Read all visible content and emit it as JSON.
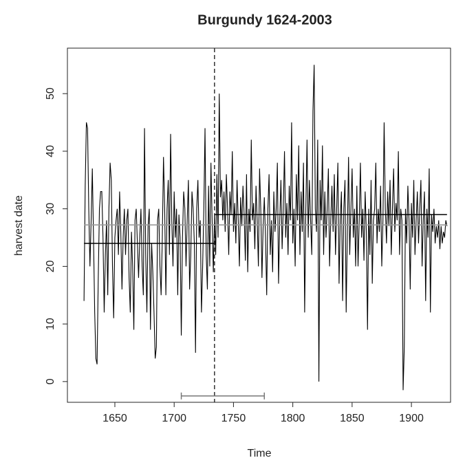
{
  "chart_data": {
    "type": "line",
    "title": "Burgundy  1624-2003",
    "xlabel": "Time",
    "ylabel": "harvest date",
    "xlim": [
      1610,
      1933
    ],
    "ylim": [
      -3.6,
      57.9
    ],
    "xticks": [
      1650,
      1700,
      1750,
      1800,
      1850,
      1900
    ],
    "yticks": [
      0,
      10,
      20,
      30,
      40,
      50
    ],
    "x": [
      1624,
      1625,
      1626,
      1627,
      1628,
      1629,
      1630,
      1631,
      1632,
      1633,
      1634,
      1635,
      1636,
      1637,
      1638,
      1639,
      1640,
      1641,
      1642,
      1643,
      1644,
      1645,
      1646,
      1647,
      1648,
      1649,
      1650,
      1651,
      1652,
      1653,
      1654,
      1655,
      1656,
      1657,
      1658,
      1659,
      1660,
      1661,
      1662,
      1663,
      1664,
      1665,
      1666,
      1667,
      1668,
      1669,
      1670,
      1671,
      1672,
      1673,
      1674,
      1675,
      1676,
      1677,
      1678,
      1679,
      1680,
      1681,
      1682,
      1683,
      1684,
      1685,
      1686,
      1687,
      1688,
      1689,
      1690,
      1691,
      1692,
      1693,
      1694,
      1695,
      1696,
      1697,
      1698,
      1699,
      1700,
      1701,
      1702,
      1703,
      1704,
      1705,
      1706,
      1707,
      1708,
      1709,
      1710,
      1711,
      1712,
      1713,
      1714,
      1715,
      1716,
      1717,
      1718,
      1719,
      1720,
      1721,
      1722,
      1723,
      1724,
      1725,
      1726,
      1727,
      1728,
      1729,
      1730,
      1731,
      1732,
      1733,
      1734,
      1735,
      1736,
      1737,
      1738,
      1739,
      1740,
      1741,
      1742,
      1743,
      1744,
      1745,
      1746,
      1747,
      1748,
      1749,
      1750,
      1751,
      1752,
      1753,
      1754,
      1755,
      1756,
      1757,
      1758,
      1759,
      1760,
      1761,
      1762,
      1763,
      1764,
      1765,
      1766,
      1767,
      1768,
      1769,
      1770,
      1771,
      1772,
      1773,
      1774,
      1775,
      1776,
      1777,
      1778,
      1779,
      1780,
      1781,
      1782,
      1783,
      1784,
      1785,
      1786,
      1787,
      1788,
      1789,
      1790,
      1791,
      1792,
      1793,
      1794,
      1795,
      1796,
      1797,
      1798,
      1799,
      1800,
      1801,
      1802,
      1803,
      1804,
      1805,
      1806,
      1807,
      1808,
      1809,
      1810,
      1811,
      1812,
      1813,
      1814,
      1815,
      1816,
      1817,
      1818,
      1819,
      1820,
      1821,
      1822,
      1823,
      1824,
      1825,
      1826,
      1827,
      1828,
      1829,
      1830,
      1831,
      1832,
      1833,
      1834,
      1835,
      1836,
      1837,
      1838,
      1839,
      1840,
      1841,
      1842,
      1843,
      1844,
      1845,
      1846,
      1847,
      1848,
      1849,
      1850,
      1851,
      1852,
      1853,
      1854,
      1855,
      1856,
      1857,
      1858,
      1859,
      1860,
      1861,
      1862,
      1863,
      1864,
      1865,
      1866,
      1867,
      1868,
      1869,
      1870,
      1871,
      1872,
      1873,
      1874,
      1875,
      1876,
      1877,
      1878,
      1879,
      1880,
      1881,
      1882,
      1883,
      1884,
      1885,
      1886,
      1887,
      1888,
      1889,
      1890,
      1891,
      1892,
      1893,
      1894,
      1895,
      1896,
      1897,
      1898,
      1899,
      1900,
      1901,
      1902,
      1903,
      1904,
      1905,
      1906,
      1907,
      1908,
      1909,
      1910,
      1911,
      1912,
      1913,
      1914,
      1915,
      1916,
      1917,
      1918,
      1919,
      1920,
      1921,
      1922,
      1923,
      1924,
      1925,
      1926,
      1927,
      1928,
      1929,
      1930
    ],
    "series": [
      {
        "color": "#000000",
        "values": [
          14,
          34,
          45,
          44,
          30,
          20,
          28,
          37,
          25,
          12,
          4,
          3,
          18,
          30,
          33,
          33,
          25,
          12,
          22,
          28,
          15,
          30,
          38,
          35,
          20,
          11,
          25,
          28,
          30,
          22,
          33,
          26,
          16,
          25,
          30,
          22,
          28,
          30,
          18,
          12,
          26,
          20,
          9,
          28,
          30,
          24,
          18,
          25,
          30,
          20,
          15,
          44,
          22,
          12,
          27,
          30,
          9,
          24,
          19,
          12,
          4,
          6,
          28,
          30,
          20,
          15,
          25,
          39,
          30,
          15,
          30,
          35,
          22,
          43,
          28,
          20,
          33,
          25,
          30,
          15,
          29,
          25,
          8,
          25,
          33,
          30,
          20,
          28,
          35,
          16,
          22,
          33,
          30,
          24,
          5,
          30,
          35,
          25,
          28,
          12,
          20,
          30,
          44,
          22,
          16,
          34,
          20,
          38,
          28,
          19,
          29,
          22,
          36,
          25,
          50,
          32,
          35,
          28,
          33,
          26,
          36,
          30,
          22,
          33,
          29,
          40,
          26,
          31,
          24,
          35,
          28,
          20,
          32,
          27,
          34,
          29,
          21,
          36,
          19,
          30,
          26,
          42,
          28,
          31,
          23,
          34,
          28,
          20,
          37,
          30,
          18,
          27,
          32,
          25,
          15,
          30,
          36,
          22,
          28,
          19,
          33,
          26,
          30,
          38,
          17,
          28,
          35,
          23,
          30,
          40,
          25,
          31,
          22,
          34,
          28,
          45,
          24,
          30,
          20,
          36,
          28,
          41,
          22,
          33,
          26,
          38,
          12,
          30,
          42,
          25,
          35,
          28,
          22,
          47,
          55,
          30,
          26,
          42,
          0,
          35,
          28,
          41,
          22,
          33,
          25,
          30,
          37,
          20,
          28,
          34,
          26,
          36,
          22,
          30,
          38,
          17,
          28,
          33,
          14,
          30,
          35,
          12,
          26,
          39,
          22,
          30,
          37,
          25,
          30,
          20,
          34,
          20,
          28,
          38,
          25,
          30,
          21,
          33,
          26,
          9,
          30,
          22,
          35,
          17,
          28,
          30,
          38,
          24,
          30,
          26,
          34,
          20,
          28,
          45,
          30,
          24,
          33,
          27,
          35,
          22,
          30,
          37,
          26,
          31,
          28,
          40,
          22,
          30,
          28,
          -1.5,
          6,
          30,
          24,
          34,
          28,
          16,
          31,
          25,
          35,
          22,
          28,
          33,
          24,
          30,
          35,
          20,
          28,
          33,
          14,
          30,
          25,
          37,
          12,
          29,
          26,
          30,
          24,
          27,
          25,
          28,
          23,
          27,
          24,
          26,
          25,
          28,
          27
        ]
      }
    ],
    "segments": [
      {
        "from": 1624,
        "to": 1734,
        "value": 24,
        "color": "#000000"
      },
      {
        "from": 1734,
        "to": 1930,
        "value": 29,
        "color": "#000000"
      },
      {
        "from": 1624,
        "to": 1930,
        "value": 27.2,
        "color": "#999999"
      }
    ],
    "breakpoint": 1734,
    "interval": {
      "from": 1706,
      "to": 1776,
      "y": -2.5,
      "color": "#777777"
    }
  }
}
